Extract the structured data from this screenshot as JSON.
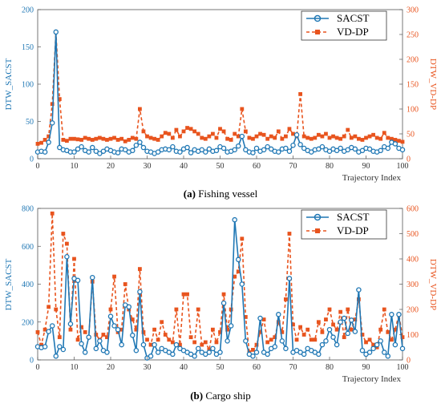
{
  "chart_data": [
    {
      "type": "line",
      "caption_prefix": "(a)",
      "caption_text": "Fishing vessel",
      "xlabel": "Trajectory Index",
      "ylabel_left": "DTW_SACST",
      "ylabel_right": "DTW_VD-DP",
      "xlim": [
        0,
        100
      ],
      "ylim_left": [
        0,
        200
      ],
      "ylim_right": [
        0,
        300
      ],
      "xticks": [
        "0",
        "10",
        "20",
        "30",
        "40",
        "50",
        "60",
        "70",
        "80",
        "90",
        "100"
      ],
      "yticks_left": [
        "0",
        "50",
        "100",
        "150",
        "200"
      ],
      "yticks_right": [
        "0",
        "50",
        "100",
        "150",
        "200",
        "250",
        "300"
      ],
      "legend_position": "top-right",
      "colors": {
        "left": "#1f77b4",
        "right": "#e8541e"
      },
      "series": [
        {
          "name": "SACST",
          "axis": "left",
          "style": "solid-circle",
          "values": [
            9,
            10,
            9,
            22,
            48,
            170,
            15,
            12,
            11,
            9,
            9,
            13,
            16,
            11,
            9,
            15,
            10,
            7,
            10,
            13,
            11,
            9,
            8,
            13,
            12,
            9,
            11,
            18,
            22,
            15,
            10,
            9,
            7,
            9,
            12,
            13,
            12,
            16,
            10,
            9,
            13,
            15,
            8,
            12,
            10,
            12,
            9,
            13,
            10,
            11,
            16,
            14,
            9,
            10,
            12,
            17,
            30,
            12,
            9,
            8,
            14,
            10,
            12,
            16,
            13,
            10,
            9,
            13,
            14,
            10,
            18,
            32,
            19,
            14,
            11,
            9,
            12,
            13,
            16,
            12,
            10,
            13,
            11,
            14,
            10,
            12,
            15,
            13,
            9,
            11,
            14,
            13,
            10,
            9,
            11,
            16,
            14,
            22,
            20,
            14,
            12
          ]
        },
        {
          "name": "VD-DP",
          "axis": "right",
          "style": "dashed-square",
          "values": [
            30,
            32,
            38,
            45,
            110,
            255,
            120,
            38,
            36,
            40,
            40,
            39,
            38,
            42,
            40,
            38,
            40,
            42,
            40,
            38,
            40,
            42,
            38,
            40,
            35,
            38,
            42,
            40,
            100,
            55,
            45,
            42,
            40,
            38,
            45,
            52,
            50,
            42,
            58,
            45,
            55,
            62,
            60,
            55,
            50,
            42,
            40,
            45,
            50,
            42,
            60,
            55,
            40,
            38,
            50,
            45,
            100,
            55,
            42,
            40,
            45,
            50,
            48,
            40,
            45,
            42,
            55,
            40,
            45,
            60,
            50,
            45,
            130,
            45,
            42,
            40,
            42,
            48,
            45,
            50,
            42,
            45,
            42,
            40,
            45,
            58,
            42,
            45,
            40,
            38,
            42,
            45,
            48,
            42,
            40,
            52,
            42,
            40,
            38,
            36,
            34
          ]
        }
      ]
    },
    {
      "type": "line",
      "caption_prefix": "(b)",
      "caption_text": "Cargo ship",
      "xlabel": "Trajectory Index",
      "ylabel_left": "DTW_SACST",
      "ylabel_right": "DTW_VD-DP",
      "xlim": [
        0,
        100
      ],
      "ylim_left": [
        0,
        800
      ],
      "ylim_right": [
        0,
        600
      ],
      "xticks": [
        "0",
        "10",
        "20",
        "30",
        "40",
        "50",
        "60",
        "70",
        "80",
        "90",
        "100"
      ],
      "yticks_left": [
        "0",
        "200",
        "400",
        "600",
        "800"
      ],
      "yticks_right": [
        "0",
        "100",
        "200",
        "300",
        "400",
        "500",
        "600"
      ],
      "legend_position": "top-right",
      "colors": {
        "left": "#1f77b4",
        "right": "#e8541e"
      },
      "series": [
        {
          "name": "SACST",
          "axis": "left",
          "style": "solid-circle",
          "values": [
            70,
            65,
            70,
            150,
            180,
            20,
            70,
            55,
            545,
            190,
            430,
            420,
            85,
            40,
            120,
            435,
            60,
            100,
            50,
            40,
            230,
            180,
            160,
            80,
            290,
            280,
            130,
            50,
            360,
            80,
            10,
            20,
            80,
            40,
            60,
            50,
            40,
            30,
            80,
            60,
            50,
            40,
            30,
            20,
            60,
            40,
            30,
            40,
            60,
            30,
            40,
            300,
            100,
            180,
            740,
            530,
            400,
            100,
            30,
            20,
            40,
            220,
            40,
            30,
            60,
            70,
            240,
            100,
            60,
            430,
            40,
            50,
            40,
            30,
            60,
            50,
            40,
            30,
            80,
            100,
            160,
            120,
            80,
            200,
            220,
            140,
            210,
            150,
            370,
            50,
            30,
            40,
            60,
            80,
            100,
            40,
            20,
            240,
            80,
            240,
            60
          ]
        },
        {
          "name": "VD-DP",
          "axis": "right",
          "style": "dashed-square",
          "values": [
            110,
            60,
            120,
            210,
            580,
            200,
            90,
            500,
            460,
            120,
            400,
            80,
            130,
            110,
            90,
            310,
            100,
            80,
            100,
            90,
            200,
            330,
            110,
            120,
            300,
            200,
            160,
            120,
            360,
            110,
            80,
            60,
            120,
            80,
            150,
            100,
            80,
            70,
            200,
            60,
            260,
            260,
            90,
            70,
            200,
            60,
            70,
            40,
            120,
            70,
            110,
            260,
            120,
            200,
            330,
            350,
            480,
            170,
            30,
            40,
            60,
            110,
            160,
            70,
            80,
            90,
            150,
            110,
            240,
            500,
            140,
            80,
            130,
            100,
            120,
            80,
            80,
            150,
            110,
            160,
            200,
            140,
            120,
            190,
            90,
            200,
            120,
            160,
            240,
            100,
            70,
            80,
            60,
            50,
            120,
            200,
            110,
            80,
            120,
            180,
            90
          ]
        }
      ]
    }
  ]
}
